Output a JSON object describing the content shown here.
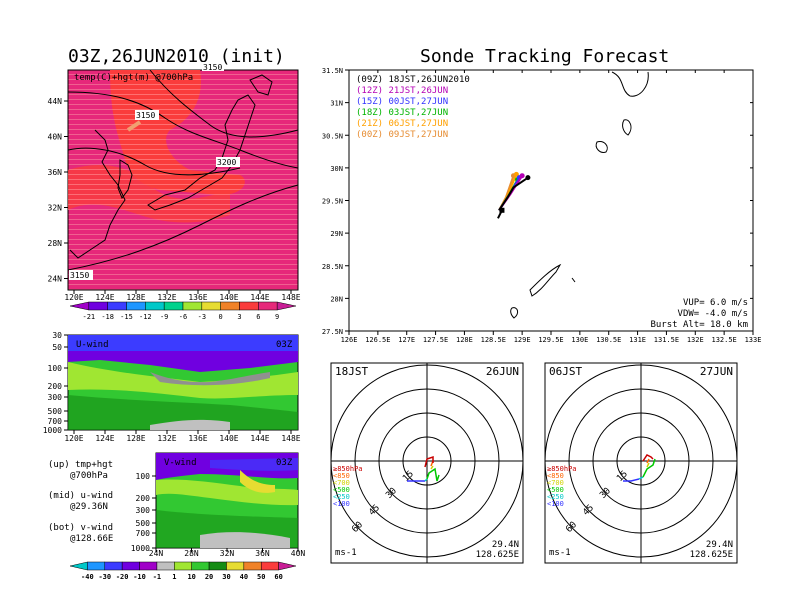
{
  "left_map": {
    "title": "03Z,26JUN2010 (init)",
    "inner_label": "temp(C)+hgt(m) @700hPa",
    "contour_labels": [
      "3150",
      "3200",
      "3150",
      "3150"
    ],
    "x_ticks": [
      "120E",
      "124E",
      "128E",
      "132E",
      "136E",
      "140E",
      "144E",
      "148E"
    ],
    "y_ticks": [
      "44N",
      "40N",
      "36N",
      "32N",
      "28N",
      "24N"
    ]
  },
  "temp_colorbar": {
    "labels": [
      "-21",
      "-18",
      "-15",
      "-12",
      "-9",
      "-6",
      "-3",
      "0",
      "3",
      "6",
      "9"
    ],
    "colors": [
      "#a000c8",
      "#7000e0",
      "#3c3cff",
      "#1e96ff",
      "#00c8c8",
      "#00d28c",
      "#a0e632",
      "#e6dc32",
      "#f08228",
      "#fa3c3c",
      "#e6287a",
      "#c81e96"
    ]
  },
  "u_wind": {
    "label": "U-wind",
    "time": "03Z",
    "y_ticks": [
      "30",
      "50",
      "100",
      "200",
      "300",
      "500",
      "700",
      "1000"
    ],
    "x_ticks": [
      "120E",
      "124E",
      "128E",
      "132E",
      "136E",
      "140E",
      "144E",
      "148E"
    ]
  },
  "v_wind": {
    "label": "V-wind",
    "time": "03Z",
    "y_ticks": [
      "100",
      "200",
      "300",
      "500",
      "700",
      "1000"
    ],
    "x_ticks": [
      "24N",
      "28N",
      "32N",
      "36N",
      "40N"
    ]
  },
  "legend_notes": [
    {
      "a": "(up) tmp+hgt",
      "b": "@700hPa"
    },
    {
      "a": "(mid) u-wind",
      "b": "@29.36N"
    },
    {
      "a": "(bot) v-wind",
      "b": "@128.66E"
    }
  ],
  "wind_colorbar": {
    "labels": [
      "-40",
      "-30",
      "-20",
      "-10",
      "-1",
      "1",
      "10",
      "20",
      "30",
      "40",
      "50",
      "60"
    ],
    "colors": [
      "#00c8c8",
      "#1e96ff",
      "#3c3cff",
      "#7000e0",
      "#a000c8",
      "#c0c0c0",
      "#a0e632",
      "#32c832",
      "#148c14",
      "#e6dc32",
      "#f08228",
      "#fa3c3c",
      "#c81e96"
    ]
  },
  "track_map": {
    "title": "Sonde Tracking Forecast",
    "launches": [
      {
        "text": "(09Z) 18JST,26JUN2010",
        "color": "#000000"
      },
      {
        "text": "(12Z) 21JST,26JUN",
        "color": "#b400b4"
      },
      {
        "text": "(15Z) 00JST,27JUN",
        "color": "#3232ff"
      },
      {
        "text": "(18Z) 03JST,27JUN",
        "color": "#00b400"
      },
      {
        "text": "(21Z) 06JST,27JUN",
        "color": "#ffa000"
      },
      {
        "text": "(00Z) 09JST,27JUN",
        "color": "#e68c32"
      }
    ],
    "x_ticks": [
      "126E",
      "126.5E",
      "127E",
      "127.5E",
      "128E",
      "128.5E",
      "129E",
      "129.5E",
      "130E",
      "130.5E",
      "131E",
      "131.5E",
      "132E",
      "132.5E",
      "133E"
    ],
    "y_ticks": [
      "31.5N",
      "31N",
      "30.5N",
      "30N",
      "29.5N",
      "29N",
      "28.5N",
      "28N",
      "27.5N"
    ],
    "params": [
      "VUP= 6.0 m/s",
      "VDW= -4.0 m/s",
      "Burst Alt= 18.0 km"
    ]
  },
  "hodographs": [
    {
      "time": "18JST",
      "date": "26JUN",
      "lat": "29.4N",
      "lon": "128.625E",
      "unit": "ms-1",
      "rings": [
        "15",
        "30",
        "45",
        "60"
      ],
      "levels": [
        {
          "t": "≥850hPa",
          "c": "#c80000"
        },
        {
          "t": "<850",
          "c": "#ff6400"
        },
        {
          "t": "<700",
          "c": "#d2d200"
        },
        {
          "t": "<500",
          "c": "#00c800"
        },
        {
          "t": "<250",
          "c": "#00c8c8"
        },
        {
          "t": "<100",
          "c": "#3232ff"
        }
      ]
    },
    {
      "time": "06JST",
      "date": "27JUN",
      "lat": "29.4N",
      "lon": "128.625E",
      "unit": "ms-1",
      "rings": [
        "15",
        "30",
        "45",
        "60"
      ],
      "levels": [
        {
          "t": "≥850hPa",
          "c": "#c80000"
        },
        {
          "t": "<850",
          "c": "#ff6400"
        },
        {
          "t": "<700",
          "c": "#d2d200"
        },
        {
          "t": "<500",
          "c": "#00c800"
        },
        {
          "t": "<250",
          "c": "#00c8c8"
        },
        {
          "t": "<100",
          "c": "#3232ff"
        }
      ]
    }
  ],
  "chart_data": [
    {
      "type": "heatmap",
      "title": "03Z,26JUN2010 (init)",
      "subtitle": "temp(C)+hgt(m) @700hPa",
      "xlim": [
        120,
        149
      ],
      "ylim": [
        22,
        48
      ],
      "contours": [
        3150,
        3200
      ]
    },
    {
      "type": "heatmap",
      "title": "U-wind",
      "xlim": [
        120,
        149
      ],
      "ylevels_hPa": [
        30,
        50,
        100,
        200,
        300,
        500,
        700,
        1000
      ]
    },
    {
      "type": "heatmap",
      "title": "V-wind",
      "xlim": [
        24,
        40
      ],
      "ylevels_hPa": [
        100,
        200,
        300,
        500,
        700,
        1000
      ]
    },
    {
      "type": "line",
      "title": "Sonde Tracking Forecast",
      "xlim": [
        126,
        133
      ],
      "ylim": [
        27.5,
        31.5
      ],
      "launch_point": [
        128.65,
        29.35
      ],
      "series": [
        {
          "name": "(09Z) 18JST,26JUN2010",
          "x": [
            128.6,
            128.75,
            128.85,
            129.1
          ],
          "y": [
            29.35,
            29.55,
            29.7,
            29.85
          ]
        },
        {
          "name": "(12Z) 21JST,26JUN",
          "x": [
            128.6,
            128.8,
            129.0
          ],
          "y": [
            29.35,
            29.6,
            29.88
          ]
        },
        {
          "name": "(15Z) 00JST,27JUN",
          "x": [
            128.6,
            128.8,
            128.95
          ],
          "y": [
            29.35,
            29.62,
            29.85
          ]
        },
        {
          "name": "(18Z) 03JST,27JUN",
          "x": [
            128.6,
            128.78,
            128.92
          ],
          "y": [
            29.35,
            29.6,
            29.82
          ]
        },
        {
          "name": "(21Z) 06JST,27JUN",
          "x": [
            128.6,
            128.75,
            128.9
          ],
          "y": [
            29.35,
            29.58,
            29.9
          ]
        },
        {
          "name": "(00Z) 09JST,27JUN",
          "x": [
            128.6,
            128.72,
            128.85
          ],
          "y": [
            29.35,
            29.55,
            29.88
          ]
        }
      ]
    }
  ]
}
